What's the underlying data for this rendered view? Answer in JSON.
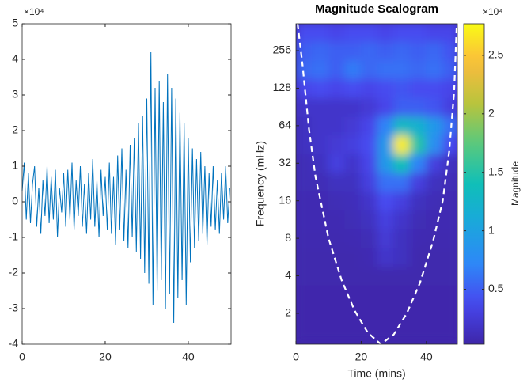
{
  "chart_data": [
    {
      "type": "line",
      "x": [
        0,
        0.5,
        1,
        1.5,
        2,
        2.5,
        3,
        3.5,
        4,
        4.5,
        5,
        5.5,
        6,
        6.5,
        7,
        7.5,
        8,
        8.5,
        9,
        9.5,
        10,
        10.5,
        11,
        11.5,
        12,
        12.5,
        13,
        13.5,
        14,
        14.5,
        15,
        15.5,
        16,
        16.5,
        17,
        17.5,
        18,
        18.5,
        19,
        19.5,
        20,
        20.5,
        21,
        21.5,
        22,
        22.5,
        23,
        23.5,
        24,
        24.5,
        25,
        25.5,
        26,
        26.5,
        27,
        27.5,
        28,
        28.5,
        29,
        29.5,
        30,
        30.5,
        31,
        31.5,
        32,
        32.5,
        33,
        33.5,
        34,
        34.5,
        35,
        35.5,
        36,
        36.5,
        37,
        37.5,
        38,
        38.5,
        39,
        39.5,
        40,
        40.5,
        41,
        41.5,
        42,
        42.5,
        43,
        43.5,
        44,
        44.5,
        45,
        45.5,
        46,
        46.5,
        47,
        47.5,
        48,
        48.5,
        49,
        49.5,
        50
      ],
      "values": [
        0.3,
        1.1,
        -0.5,
        0.8,
        -0.6,
        0.5,
        1.0,
        -0.7,
        0.4,
        -0.9,
        0.6,
        -0.4,
        1.0,
        -0.6,
        0.7,
        -0.5,
        0.9,
        -1.0,
        0.4,
        -0.3,
        0.8,
        -0.7,
        0.9,
        -0.5,
        1.1,
        -0.8,
        0.6,
        -0.4,
        1.0,
        -0.7,
        0.5,
        -0.9,
        0.8,
        -0.5,
        1.2,
        -0.7,
        0.6,
        -1.0,
        0.9,
        -0.4,
        0.7,
        -0.8,
        1.1,
        -0.9,
        0.7,
        -1.2,
        1.3,
        -0.8,
        1.5,
        -1.1,
        0.9,
        -1.3,
        1.6,
        -1.0,
        1.8,
        -1.4,
        2.2,
        -1.6,
        2.4,
        -2.0,
        2.9,
        -2.3,
        4.2,
        -2.9,
        3.2,
        -2.5,
        3.4,
        -2.2,
        2.8,
        -3.0,
        3.6,
        -2.6,
        3.2,
        -3.4,
        2.9,
        -2.7,
        2.5,
        -2.2,
        2.2,
        -2.9,
        1.8,
        -1.7,
        1.5,
        -1.3,
        1.2,
        -1.1,
        1.4,
        -0.9,
        1.0,
        -1.2,
        0.8,
        -0.7,
        1.0,
        -0.8,
        0.6,
        -0.9,
        0.8,
        -0.5,
        1.0,
        -0.6,
        0.4
      ],
      "color": "#0072bd",
      "xlim": [
        0,
        50.3
      ],
      "ylim": [
        -4,
        5
      ],
      "xticks": [
        0,
        20,
        40
      ],
      "yticks": [
        -4,
        -3,
        -2,
        -1,
        0,
        1,
        2,
        3,
        4,
        5
      ],
      "y_multiplier": "×10⁴"
    },
    {
      "type": "heatmap",
      "title": "Magnitude Scalogram",
      "xlabel": "Time (mins)",
      "ylabel": "Frequency (mHz)",
      "x": [
        2.5,
        7.5,
        12.5,
        17.5,
        22.5,
        27.5,
        32.5,
        37.5,
        42.5,
        47.5
      ],
      "y": [
        1.41,
        2,
        2.83,
        4,
        5.66,
        8,
        11.3,
        16,
        22.6,
        32,
        45.3,
        64,
        90.5,
        128,
        181,
        256,
        362
      ],
      "z": [
        [
          0.05,
          0.05,
          0.05,
          0.05,
          0.05,
          0.05,
          0.05,
          0.05,
          0.05,
          0.05
        ],
        [
          0.05,
          0.05,
          0.05,
          0.05,
          0.05,
          0.05,
          0.05,
          0.05,
          0.05,
          0.05
        ],
        [
          0.05,
          0.05,
          0.05,
          0.05,
          0.05,
          0.05,
          0.05,
          0.05,
          0.05,
          0.05
        ],
        [
          0.06,
          0.06,
          0.06,
          0.06,
          0.06,
          0.06,
          0.06,
          0.06,
          0.06,
          0.06
        ],
        [
          0.06,
          0.06,
          0.06,
          0.06,
          0.08,
          0.2,
          0.15,
          0.06,
          0.06,
          0.06
        ],
        [
          0.07,
          0.07,
          0.07,
          0.08,
          0.1,
          0.25,
          0.15,
          0.08,
          0.07,
          0.07
        ],
        [
          0.08,
          0.08,
          0.08,
          0.1,
          0.15,
          0.3,
          0.2,
          0.1,
          0.08,
          0.08
        ],
        [
          0.08,
          0.08,
          0.1,
          0.12,
          0.2,
          0.4,
          0.3,
          0.15,
          0.1,
          0.08
        ],
        [
          0.1,
          0.1,
          0.15,
          0.15,
          0.3,
          0.6,
          0.6,
          0.3,
          0.15,
          0.1
        ],
        [
          0.1,
          0.15,
          0.3,
          0.2,
          0.35,
          0.9,
          1.4,
          0.7,
          0.3,
          0.15
        ],
        [
          0.15,
          0.2,
          0.25,
          0.3,
          0.4,
          0.9,
          2.7,
          1.5,
          0.8,
          0.4
        ],
        [
          0.15,
          0.2,
          0.2,
          0.25,
          0.35,
          0.7,
          1.3,
          1.2,
          0.9,
          0.6
        ],
        [
          0.2,
          0.2,
          0.2,
          0.2,
          0.25,
          0.35,
          0.5,
          0.5,
          0.45,
          0.3
        ],
        [
          0.35,
          0.4,
          0.35,
          0.4,
          0.35,
          0.4,
          0.45,
          0.4,
          0.4,
          0.35
        ],
        [
          0.55,
          0.6,
          0.5,
          0.65,
          0.55,
          0.6,
          0.6,
          0.55,
          0.6,
          0.5
        ],
        [
          0.5,
          0.55,
          0.5,
          0.5,
          0.55,
          0.5,
          0.55,
          0.5,
          0.55,
          0.45
        ],
        [
          0.4,
          0.4,
          0.35,
          0.4,
          0.4,
          0.35,
          0.4,
          0.4,
          0.35,
          0.35
        ]
      ],
      "xlim": [
        0,
        49.5
      ],
      "ylim": [
        1.13,
        421
      ],
      "xticks": [
        0,
        20,
        40
      ],
      "yticks": [
        2,
        4,
        8,
        16,
        32,
        64,
        128,
        256
      ],
      "yscale": "log",
      "colormap": "parula",
      "clim": [
        0.03,
        2.77
      ],
      "colorbar": {
        "ticks": [
          0.5,
          1,
          1.5,
          2,
          2.5
        ],
        "label": "Magnitude",
        "multiplier": "×10⁴"
      },
      "coi": {
        "x": [
          0.5,
          2,
          4,
          6,
          10,
          14,
          18,
          22,
          26,
          30,
          34,
          38,
          42,
          45,
          47,
          48.5,
          49.3
        ],
        "y": [
          421,
          200,
          60,
          25,
          8,
          3.7,
          2.1,
          1.4,
          1.13,
          1.35,
          2,
          3.5,
          7.5,
          16,
          40,
          120,
          421
        ],
        "color": "#ffffff",
        "style": "dashed"
      }
    }
  ]
}
